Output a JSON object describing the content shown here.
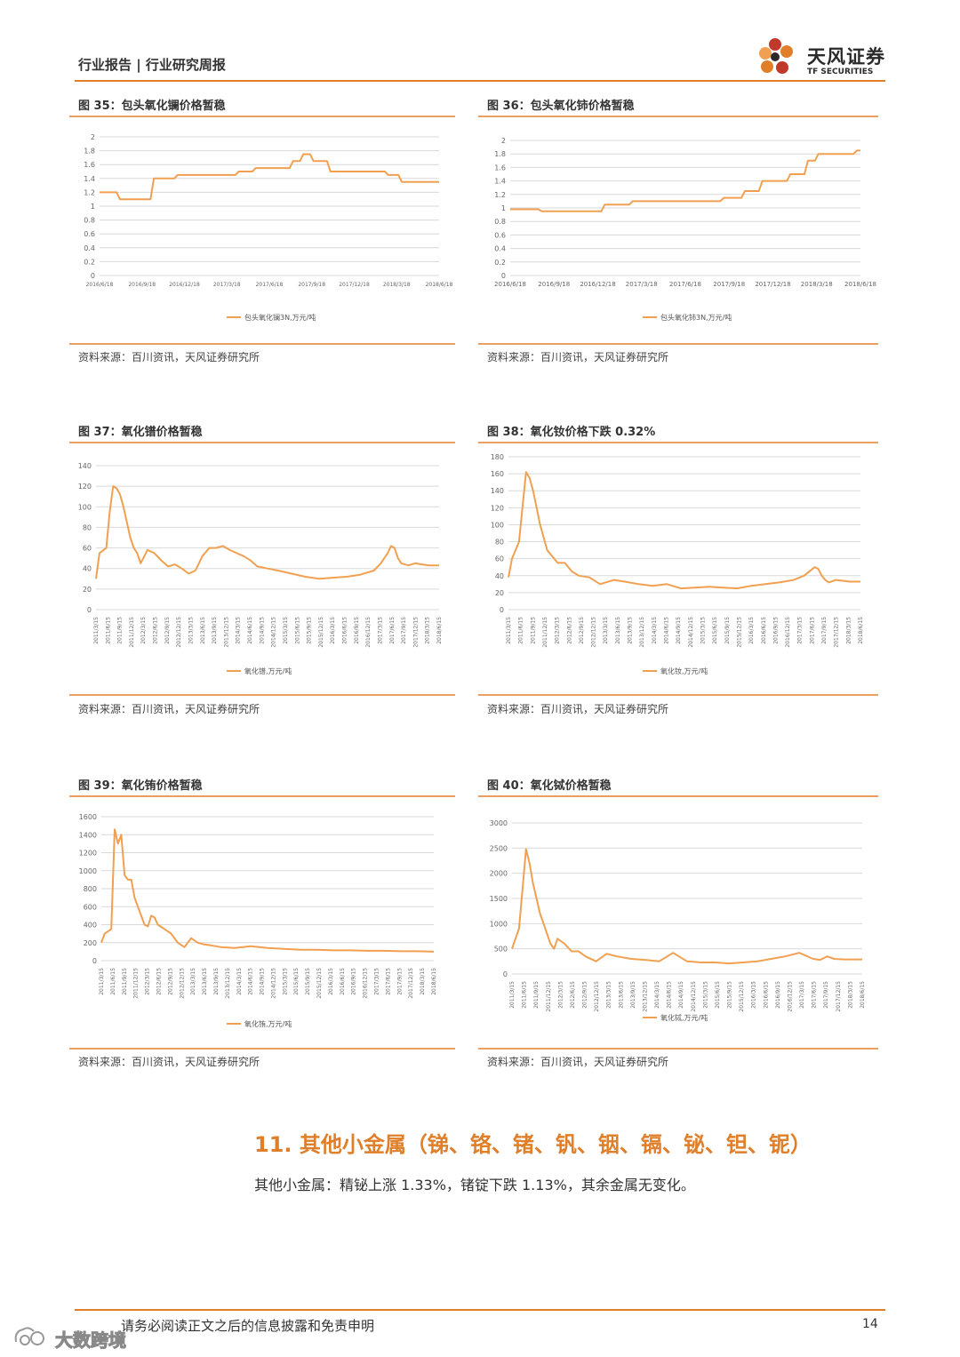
{
  "header": {
    "left_text": "行业报告 | 行业研究周报",
    "logo_cn": "天风证券",
    "logo_en": "TF SECURITIES",
    "logo_icon": "flower-logo-icon"
  },
  "colors": {
    "accent": "#e07f2a",
    "series": "#f0a050",
    "grid": "#d9d9d9",
    "rule": "#e9a060"
  },
  "figures": [
    {
      "title": "图 35：包头氧化镧价格暂稳",
      "source": "资料来源：百川资讯，天风证券研究所"
    },
    {
      "title": "图 36：包头氧化铈价格暂稳",
      "source": "资料来源：百川资讯，天风证券研究所"
    },
    {
      "title": "图 37：氧化镨价格暂稳",
      "source": "资料来源：百川资讯，天风证券研究所"
    },
    {
      "title": "图 38：氧化钕价格下跌 0.32%",
      "source": "资料来源：百川资讯，天风证券研究所"
    },
    {
      "title": "图 39：氧化铕价格暂稳",
      "source": "资料来源：百川资讯，天风证券研究所"
    },
    {
      "title": "图 40：氧化铽价格暂稳",
      "source": "资料来源：百川资讯，天风证券研究所"
    }
  ],
  "chart_data": [
    {
      "type": "line",
      "yticks": [
        "0",
        "0.2",
        "0.4",
        "0.6",
        "0.8",
        "1",
        "1.2",
        "1.4",
        "1.6",
        "1.8",
        "2"
      ],
      "ylim": [
        0,
        2
      ],
      "xticks": [
        "2016/6/18",
        "2016/9/18",
        "2016/12/18",
        "2017/3/18",
        "2017/6/18",
        "2017/9/18",
        "2017/12/18",
        "2018/3/18",
        "2018/6/18"
      ],
      "series": [
        {
          "name": "包头氧化镧3N,万元/吨",
          "x": [
            0,
            0.05,
            0.06,
            0.15,
            0.16,
            0.22,
            0.23,
            0.4,
            0.41,
            0.45,
            0.46,
            0.56,
            0.57,
            0.59,
            0.6,
            0.62,
            0.63,
            0.67,
            0.68,
            0.84,
            0.85,
            0.88,
            0.89,
            1.0
          ],
          "y": [
            1.2,
            1.2,
            1.1,
            1.1,
            1.4,
            1.4,
            1.45,
            1.45,
            1.5,
            1.5,
            1.55,
            1.55,
            1.65,
            1.65,
            1.75,
            1.75,
            1.65,
            1.65,
            1.5,
            1.5,
            1.45,
            1.45,
            1.35,
            1.35
          ]
        }
      ],
      "legend": "bottom",
      "grid": true
    },
    {
      "type": "line",
      "yticks": [
        "0",
        "0.2",
        "0.4",
        "0.6",
        "0.8",
        "1",
        "1.2",
        "1.4",
        "1.6",
        "1.8",
        "2"
      ],
      "ylim": [
        0,
        2
      ],
      "xticks": [
        "2016/6/18",
        "2016/9/18",
        "2016/12/18",
        "2017/3/18",
        "2017/6/18",
        "2017/9/18",
        "2017/12/18",
        "2018/3/18",
        "2018/6/18"
      ],
      "series": [
        {
          "name": "包头氧化铈3N,万元/吨",
          "x": [
            0,
            0.08,
            0.09,
            0.26,
            0.27,
            0.34,
            0.35,
            0.6,
            0.61,
            0.66,
            0.67,
            0.71,
            0.72,
            0.79,
            0.8,
            0.84,
            0.85,
            0.87,
            0.88,
            0.98,
            0.99,
            1.0
          ],
          "y": [
            0.98,
            0.98,
            0.95,
            0.95,
            1.05,
            1.05,
            1.1,
            1.1,
            1.15,
            1.15,
            1.25,
            1.25,
            1.4,
            1.4,
            1.5,
            1.5,
            1.7,
            1.7,
            1.8,
            1.8,
            1.85,
            1.85
          ]
        }
      ],
      "legend": "bottom",
      "grid": true
    },
    {
      "type": "line",
      "yticks": [
        "0",
        "20",
        "40",
        "60",
        "80",
        "100",
        "120",
        "140"
      ],
      "ylim": [
        0,
        140
      ],
      "xticks": [
        "2011/3/15",
        "2011/6/15",
        "2011/9/15",
        "2011/12/15",
        "2012/3/15",
        "2012/6/15",
        "2012/9/15",
        "2012/12/15",
        "2013/3/15",
        "2013/6/15",
        "2013/9/15",
        "2013/12/15",
        "2014/3/15",
        "2014/6/15",
        "2014/9/15",
        "2014/12/15",
        "2015/3/15",
        "2015/6/15",
        "2015/9/15",
        "2015/12/15",
        "2016/3/15",
        "2016/6/15",
        "2016/9/15",
        "2016/12/15",
        "2017/3/15",
        "2017/6/15",
        "2017/9/15",
        "2017/12/15",
        "2018/3/15",
        "2018/6/15"
      ],
      "series": [
        {
          "name": "氧化镨,万元/吨",
          "x": [
            0,
            0.01,
            0.03,
            0.04,
            0.05,
            0.06,
            0.07,
            0.08,
            0.09,
            0.1,
            0.11,
            0.12,
            0.13,
            0.15,
            0.17,
            0.19,
            0.21,
            0.23,
            0.25,
            0.27,
            0.29,
            0.31,
            0.33,
            0.35,
            0.37,
            0.39,
            0.41,
            0.43,
            0.45,
            0.47,
            0.5,
            0.53,
            0.57,
            0.61,
            0.65,
            0.69,
            0.73,
            0.77,
            0.81,
            0.83,
            0.85,
            0.86,
            0.87,
            0.88,
            0.89,
            0.91,
            0.93,
            0.95,
            0.97,
            1.0
          ],
          "y": [
            30,
            55,
            60,
            95,
            120,
            118,
            112,
            100,
            85,
            70,
            60,
            55,
            45,
            58,
            55,
            48,
            42,
            44,
            40,
            35,
            38,
            52,
            60,
            60,
            62,
            58,
            55,
            52,
            48,
            42,
            40,
            38,
            35,
            32,
            30,
            31,
            32,
            34,
            38,
            45,
            55,
            62,
            60,
            50,
            45,
            43,
            45,
            44,
            43,
            43
          ]
        }
      ],
      "legend": "bottom",
      "grid": true
    },
    {
      "type": "line",
      "yticks": [
        "0",
        "20",
        "40",
        "60",
        "80",
        "100",
        "120",
        "140",
        "160",
        "180"
      ],
      "ylim": [
        0,
        180
      ],
      "xticks": [
        "2011/3/15",
        "2011/6/15",
        "2011/9/15",
        "2011/12/15",
        "2012/3/15",
        "2012/6/15",
        "2012/9/15",
        "2012/12/15",
        "2013/3/15",
        "2013/6/15",
        "2013/9/15",
        "2013/12/15",
        "2014/3/15",
        "2014/6/15",
        "2014/9/15",
        "2014/12/15",
        "2015/3/15",
        "2015/6/15",
        "2015/9/15",
        "2015/12/15",
        "2016/3/15",
        "2016/6/15",
        "2016/9/15",
        "2016/12/15",
        "2017/3/15",
        "2017/6/15",
        "2017/9/15",
        "2017/12/15",
        "2018/3/15",
        "2018/6/15"
      ],
      "series": [
        {
          "name": "氧化钕,万元/吨",
          "x": [
            0,
            0.01,
            0.03,
            0.05,
            0.06,
            0.07,
            0.08,
            0.09,
            0.1,
            0.11,
            0.12,
            0.14,
            0.16,
            0.18,
            0.2,
            0.23,
            0.26,
            0.3,
            0.33,
            0.37,
            0.41,
            0.45,
            0.49,
            0.53,
            0.57,
            0.61,
            0.65,
            0.69,
            0.73,
            0.77,
            0.81,
            0.84,
            0.87,
            0.88,
            0.89,
            0.9,
            0.91,
            0.93,
            0.95,
            0.97,
            1.0
          ],
          "y": [
            38,
            60,
            80,
            162,
            155,
            140,
            120,
            100,
            85,
            70,
            65,
            55,
            55,
            45,
            40,
            38,
            30,
            35,
            33,
            30,
            28,
            30,
            25,
            26,
            27,
            26,
            25,
            28,
            30,
            32,
            35,
            40,
            50,
            48,
            40,
            35,
            32,
            35,
            34,
            33,
            33
          ]
        }
      ],
      "legend": "bottom",
      "grid": true
    },
    {
      "type": "line",
      "yticks": [
        "0",
        "200",
        "400",
        "600",
        "800",
        "1000",
        "1200",
        "1400",
        "1600"
      ],
      "ylim": [
        0,
        1600
      ],
      "xticks": [
        "2011/3/15",
        "2011/6/15",
        "2011/9/15",
        "2011/12/15",
        "2012/3/15",
        "2012/6/15",
        "2012/9/15",
        "2012/12/15",
        "2013/3/15",
        "2013/6/15",
        "2013/9/15",
        "2013/12/15",
        "2014/3/15",
        "2014/6/15",
        "2014/9/15",
        "2014/12/15",
        "2015/3/15",
        "2015/6/15",
        "2015/9/15",
        "2015/12/15",
        "2016/3/15",
        "2016/6/15",
        "2016/9/15",
        "2016/12/15",
        "2017/3/15",
        "2017/6/15",
        "2017/9/15",
        "2017/12/15",
        "2018/3/15",
        "2018/6/15"
      ],
      "series": [
        {
          "name": "氧化铕,万元/吨",
          "x": [
            0,
            0.01,
            0.03,
            0.04,
            0.05,
            0.06,
            0.07,
            0.08,
            0.09,
            0.1,
            0.11,
            0.12,
            0.13,
            0.14,
            0.15,
            0.16,
            0.17,
            0.19,
            0.21,
            0.23,
            0.25,
            0.27,
            0.29,
            0.31,
            0.33,
            0.36,
            0.4,
            0.45,
            0.5,
            0.55,
            0.6,
            0.65,
            0.7,
            0.75,
            0.8,
            0.85,
            0.9,
            0.95,
            1.0
          ],
          "y": [
            200,
            300,
            350,
            1460,
            1300,
            1400,
            950,
            900,
            900,
            700,
            600,
            500,
            400,
            380,
            500,
            480,
            400,
            350,
            300,
            200,
            150,
            250,
            200,
            180,
            170,
            150,
            140,
            160,
            140,
            130,
            120,
            120,
            115,
            115,
            110,
            110,
            105,
            105,
            100
          ]
        }
      ],
      "legend": "bottom",
      "grid": true
    },
    {
      "type": "line",
      "yticks": [
        "0",
        "500",
        "1000",
        "1500",
        "2000",
        "2500",
        "3000"
      ],
      "ylim": [
        0,
        3000
      ],
      "xticks": [
        "2011/3/15",
        "2011/6/15",
        "2011/9/15",
        "2011/12/15",
        "2012/3/15",
        "2012/6/15",
        "2012/9/15",
        "2012/12/15",
        "2013/3/15",
        "2013/6/15",
        "2013/9/15",
        "2013/12/15",
        "2014/3/15",
        "2014/6/15",
        "2014/9/15",
        "2014/12/15",
        "2015/3/15",
        "2015/6/15",
        "2015/9/15",
        "2015/12/15",
        "2016/3/15",
        "2016/6/15",
        "2016/9/15",
        "2016/12/15",
        "2017/3/15",
        "2017/6/15",
        "2017/9/15",
        "2017/12/15",
        "2018/3/15",
        "2018/6/15"
      ],
      "series": [
        {
          "name": "氧化铽,万元/吨",
          "x": [
            0,
            0.01,
            0.02,
            0.04,
            0.05,
            0.06,
            0.07,
            0.08,
            0.09,
            0.1,
            0.11,
            0.12,
            0.13,
            0.15,
            0.17,
            0.19,
            0.21,
            0.24,
            0.27,
            0.3,
            0.34,
            0.38,
            0.42,
            0.46,
            0.5,
            0.54,
            0.58,
            0.62,
            0.66,
            0.7,
            0.74,
            0.78,
            0.82,
            0.86,
            0.88,
            0.9,
            0.92,
            0.95,
            1.0
          ],
          "y": [
            500,
            700,
            900,
            2480,
            2200,
            1800,
            1500,
            1200,
            1000,
            800,
            600,
            500,
            700,
            600,
            450,
            450,
            350,
            250,
            400,
            350,
            300,
            280,
            250,
            420,
            250,
            230,
            230,
            210,
            230,
            250,
            300,
            350,
            420,
            300,
            280,
            350,
            300,
            290,
            290
          ]
        }
      ],
      "legend": "bottom",
      "grid": true
    }
  ],
  "section": {
    "title": "11. 其他小金属（锑、铬、锗、钒、铟、镉、铋、钽、铌）",
    "paragraph": "其他小金属：精铋上涨 1.33%，锗锭下跌 1.13%，其余金属无变化。"
  },
  "footer": {
    "disclaimer": "请务必阅读正文之后的信息披露和免责申明",
    "page": "14",
    "watermark": "大数跨境"
  }
}
